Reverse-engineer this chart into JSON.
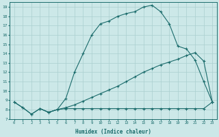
{
  "xlabel": "Humidex (Indice chaleur)",
  "bg_color": "#cce8e8",
  "grid_color": "#aacfcf",
  "line_color": "#1a6b6b",
  "xlim": [
    -0.5,
    23.5
  ],
  "ylim": [
    7,
    19.5
  ],
  "xticks": [
    0,
    1,
    2,
    3,
    4,
    5,
    6,
    7,
    8,
    9,
    10,
    11,
    12,
    13,
    14,
    15,
    16,
    17,
    18,
    19,
    20,
    21,
    22,
    23
  ],
  "yticks": [
    7,
    8,
    9,
    10,
    11,
    12,
    13,
    14,
    15,
    16,
    17,
    18,
    19
  ],
  "line_flat": {
    "x": [
      0,
      1,
      2,
      3,
      4,
      5,
      6,
      7,
      8,
      9,
      10,
      11,
      12,
      13,
      14,
      15,
      16,
      17,
      18,
      19,
      20,
      21,
      22,
      23
    ],
    "y": [
      8.8,
      8.2,
      7.5,
      8.1,
      7.7,
      8.0,
      8.1,
      8.1,
      8.1,
      8.1,
      8.1,
      8.1,
      8.1,
      8.1,
      8.1,
      8.1,
      8.1,
      8.1,
      8.1,
      8.1,
      8.1,
      8.1,
      8.1,
      8.8
    ]
  },
  "line_diag": {
    "x": [
      3,
      4,
      5,
      6,
      7,
      8,
      9,
      10,
      11,
      12,
      13,
      14,
      15,
      16,
      17,
      18,
      19,
      20,
      21,
      22,
      23
    ],
    "y": [
      8.1,
      7.7,
      8.0,
      8.2,
      8.5,
      8.9,
      9.3,
      9.7,
      10.1,
      10.5,
      11.0,
      11.5,
      12.0,
      12.4,
      12.8,
      13.1,
      13.4,
      13.8,
      14.1,
      13.2,
      8.8
    ]
  },
  "line_curve": {
    "x": [
      0,
      1,
      2,
      3,
      4,
      5,
      6,
      7,
      8,
      9,
      10,
      11,
      12,
      13,
      14,
      15,
      16,
      17,
      18,
      19,
      20,
      21,
      22,
      23
    ],
    "y": [
      8.8,
      8.2,
      7.5,
      8.1,
      7.7,
      8.0,
      9.2,
      12.0,
      14.0,
      16.0,
      17.2,
      17.5,
      18.0,
      18.3,
      18.5,
      19.0,
      19.2,
      18.5,
      17.2,
      14.8,
      14.5,
      13.3,
      11.0,
      8.8
    ]
  }
}
